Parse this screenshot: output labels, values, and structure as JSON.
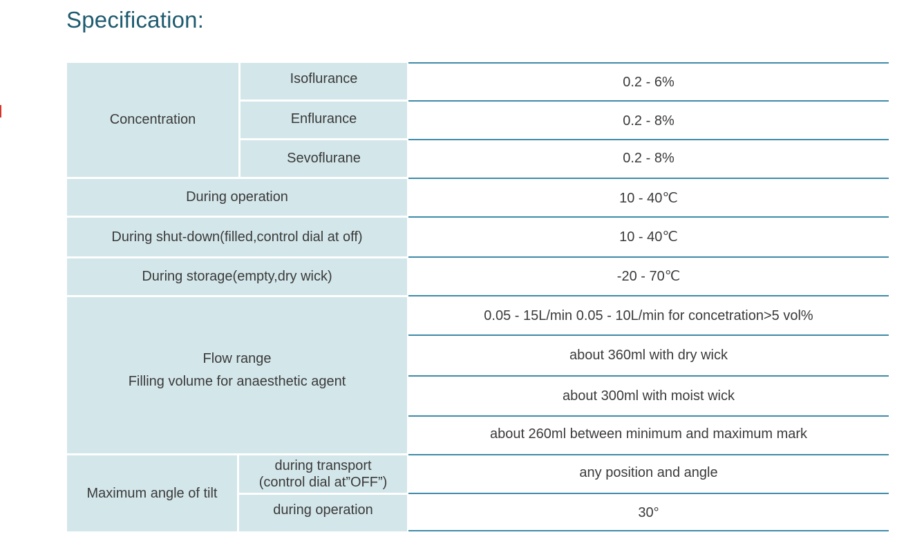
{
  "heading": "Specification:",
  "concentration": {
    "label": "Concentration",
    "agents": [
      "Isoflurance",
      "Enflurance",
      "Sevoflurane"
    ],
    "values": [
      "0.2 - 6%",
      "0.2 - 8%",
      "0.2 - 8%"
    ]
  },
  "temperature": [
    {
      "label": "During operation",
      "value": "10 - 40℃"
    },
    {
      "label": "During shut-down(filled,control dial at off)",
      "value": "10 - 40℃"
    },
    {
      "label": "During storage(empty,dry wick)",
      "value": "-20 - 70℃"
    }
  ],
  "flow": {
    "label_line1": "Flow range",
    "label_line2": "Filling volume for anaesthetic agent",
    "values": [
      "0.05 - 15L/min 0.05 - 10L/min for concetration>5 vol%",
      "about 360ml with dry wick",
      "about 300ml with moist wick",
      "about 260ml between minimum and maximum mark"
    ]
  },
  "tilt": {
    "label": "Maximum angle of tilt",
    "transport_line1": "during transport",
    "transport_line2": "(control dial at”OFF”)",
    "operation": "during operation",
    "values": [
      "any position and angle",
      "30°"
    ]
  }
}
